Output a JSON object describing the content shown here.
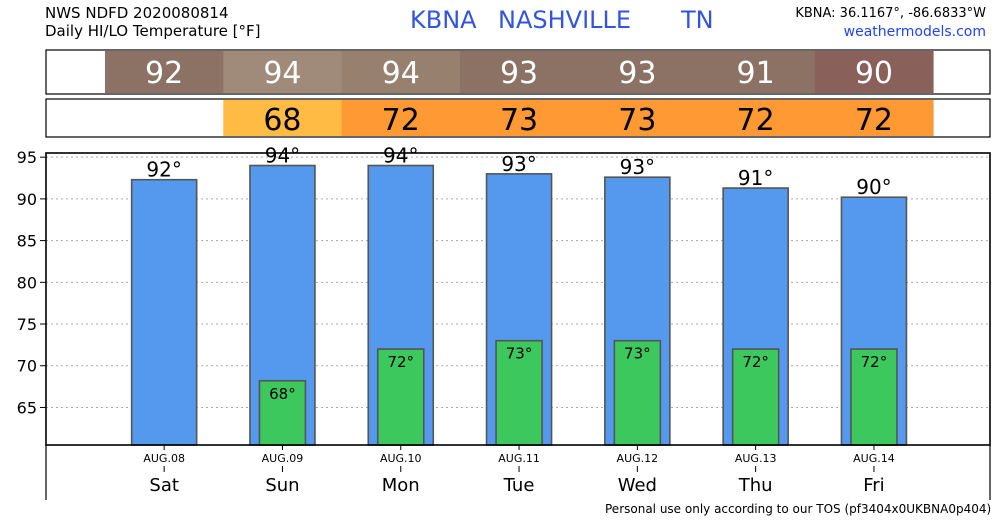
{
  "header": {
    "line1": "NWS NDFD 2020080814",
    "line2": "Daily HI/LO Temperature [°F]",
    "station_id": "KBNA",
    "city": "NASHVILLE",
    "state": "TN",
    "coords": "KBNA: 36.1167°, -86.6833°W",
    "site": "weathermodels.com"
  },
  "footer": {
    "tos": "Personal use only according to our TOS (pf3404x0UKBNA0p404)"
  },
  "chart_data": {
    "type": "bar",
    "categories": [
      "Sat",
      "Sun",
      "Mon",
      "Tue",
      "Wed",
      "Thu",
      "Fri"
    ],
    "dates": [
      "AUG.08",
      "AUG.09",
      "AUG.10",
      "AUG.11",
      "AUG.12",
      "AUG.13",
      "AUG.14"
    ],
    "series": [
      {
        "values": [
          92.3,
          94.0,
          94.0,
          93.0,
          92.6,
          91.3,
          90.2
        ],
        "labels": [
          "92°",
          "94°",
          "94°",
          "93°",
          "93°",
          "91°",
          "90°"
        ],
        "color": "#5599ee"
      },
      {
        "values": [
          null,
          68.2,
          72.0,
          73.0,
          73.0,
          72.0,
          72.0
        ],
        "labels": [
          "",
          "68°",
          "72°",
          "73°",
          "73°",
          "72°",
          "72°"
        ],
        "color": "#3cc85c"
      }
    ],
    "hi_strip": {
      "values": [
        "92",
        "94",
        "94",
        "93",
        "93",
        "91",
        "90"
      ],
      "colors": [
        "#8c7264",
        "#a08a7a",
        "#98806e",
        "#8c7264",
        "#8c7264",
        "#8c7264",
        "#8a605a"
      ]
    },
    "lo_strip": {
      "values": [
        "",
        "68",
        "72",
        "73",
        "73",
        "72",
        "72"
      ],
      "colors": [
        "#ffffff",
        "#ffbb44",
        "#ff9933",
        "#ff9933",
        "#ff9933",
        "#ff9933",
        "#ff9933"
      ]
    },
    "y_ticks": [
      65,
      70,
      75,
      80,
      85,
      90,
      95
    ],
    "ylim": [
      60.5,
      95.5
    ],
    "grid": true
  }
}
